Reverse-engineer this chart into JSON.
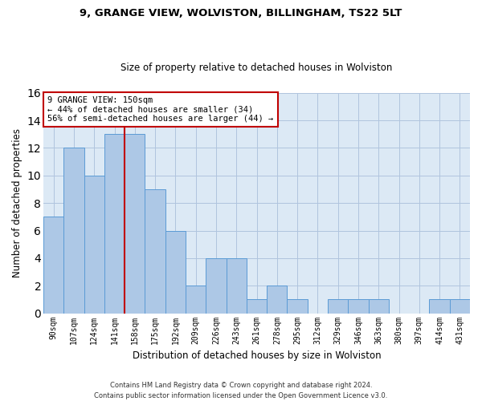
{
  "title": "9, GRANGE VIEW, WOLVISTON, BILLINGHAM, TS22 5LT",
  "subtitle": "Size of property relative to detached houses in Wolviston",
  "xlabel": "Distribution of detached houses by size in Wolviston",
  "ylabel": "Number of detached properties",
  "categories": [
    "90sqm",
    "107sqm",
    "124sqm",
    "141sqm",
    "158sqm",
    "175sqm",
    "192sqm",
    "209sqm",
    "226sqm",
    "243sqm",
    "261sqm",
    "278sqm",
    "295sqm",
    "312sqm",
    "329sqm",
    "346sqm",
    "363sqm",
    "380sqm",
    "397sqm",
    "414sqm",
    "431sqm"
  ],
  "values": [
    7,
    12,
    10,
    13,
    13,
    9,
    6,
    2,
    4,
    4,
    1,
    2,
    1,
    0,
    1,
    1,
    1,
    0,
    0,
    1,
    1
  ],
  "bar_color": "#adc8e6",
  "bar_edge_color": "#5b9bd5",
  "background_color": "#ffffff",
  "plot_bg_color": "#dce9f5",
  "grid_color": "#b0c4de",
  "ylim": [
    0,
    16
  ],
  "yticks": [
    0,
    2,
    4,
    6,
    8,
    10,
    12,
    14,
    16
  ],
  "vline_x": 3.5,
  "vline_color": "#c00000",
  "annotation_text": "9 GRANGE VIEW: 150sqm\n← 44% of detached houses are smaller (34)\n56% of semi-detached houses are larger (44) →",
  "annotation_box_color": "#c00000",
  "footer_line1": "Contains HM Land Registry data © Crown copyright and database right 2024.",
  "footer_line2": "Contains public sector information licensed under the Open Government Licence v3.0."
}
